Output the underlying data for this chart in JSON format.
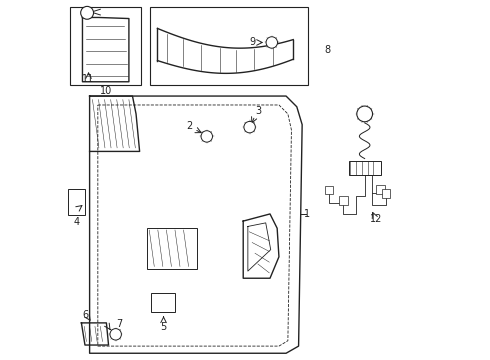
{
  "bg_color": "#ffffff",
  "line_color": "#222222",
  "label_color": "#000000",
  "lw_main": 1.0,
  "lw_thin": 0.6
}
